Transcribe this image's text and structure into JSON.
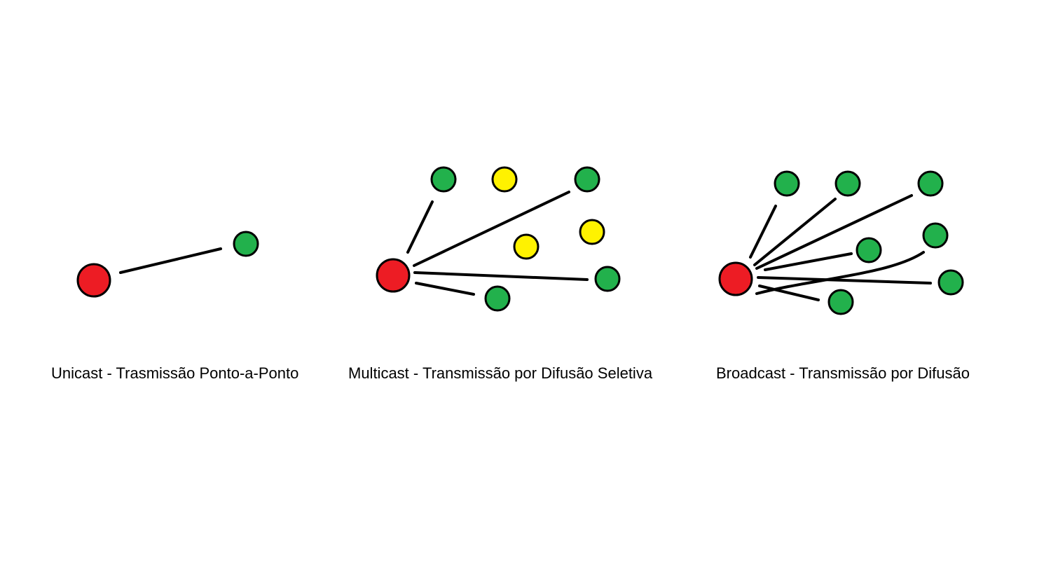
{
  "colors": {
    "sender": "#ed1c24",
    "receiver": "#22b14c",
    "non_receiver": "#fff200",
    "link": "#000000",
    "outline": "#000000"
  },
  "legend_roles": [
    "sender",
    "receiver",
    "non_receiver"
  ],
  "panels": [
    {
      "id": "unicast",
      "caption": "Unicast - Trasmissão Ponto-a-Ponto"
    },
    {
      "id": "multicast",
      "caption": "Multicast - Transmissão por Difusão Seletiva"
    },
    {
      "id": "broadcast",
      "caption": "Broadcast - Transmissão por Difusão"
    }
  ]
}
